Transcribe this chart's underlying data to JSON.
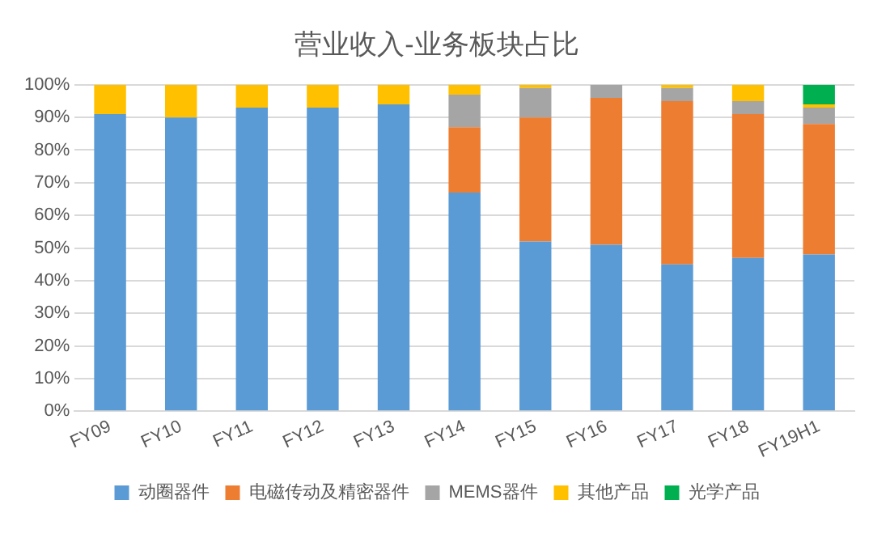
{
  "chart_data": {
    "type": "bar",
    "title": "营业收入-业务板块占比",
    "stacked": true,
    "categories": [
      "FY09",
      "FY10",
      "FY11",
      "FY12",
      "FY13",
      "FY14",
      "FY15",
      "FY16",
      "FY17",
      "FY18",
      "FY19H1"
    ],
    "series": [
      {
        "name": "动圈器件",
        "color": "#5b9bd5",
        "values": [
          91,
          90,
          93,
          93,
          94,
          67,
          52,
          51,
          45,
          47,
          48
        ]
      },
      {
        "name": "电磁传动及精密器件",
        "color": "#ed7d31",
        "values": [
          0,
          0,
          0,
          0,
          0,
          20,
          38,
          45,
          50,
          44,
          40
        ]
      },
      {
        "name": "MEMS器件",
        "color": "#a5a5a5",
        "values": [
          0,
          0,
          0,
          0,
          0,
          10,
          9,
          4,
          4,
          4,
          5
        ]
      },
      {
        "name": "其他产品",
        "color": "#ffc000",
        "values": [
          9,
          10,
          7,
          7,
          6,
          3,
          1,
          0,
          1,
          5,
          1
        ]
      },
      {
        "name": "光学产品",
        "color": "#00b050",
        "values": [
          0,
          0,
          0,
          0,
          0,
          0,
          0,
          0,
          0,
          0,
          6
        ]
      }
    ],
    "ylim": [
      0,
      100
    ],
    "yticks": [
      {
        "value": 0,
        "label": "0%"
      },
      {
        "value": 10,
        "label": "10%"
      },
      {
        "value": 20,
        "label": "20%"
      },
      {
        "value": 30,
        "label": "30%"
      },
      {
        "value": 40,
        "label": "40%"
      },
      {
        "value": 50,
        "label": "50%"
      },
      {
        "value": 60,
        "label": "60%"
      },
      {
        "value": 70,
        "label": "70%"
      },
      {
        "value": 80,
        "label": "80%"
      },
      {
        "value": 90,
        "label": "90%"
      },
      {
        "value": 100,
        "label": "100%"
      }
    ],
    "grid": "y",
    "legend": "bottom"
  }
}
